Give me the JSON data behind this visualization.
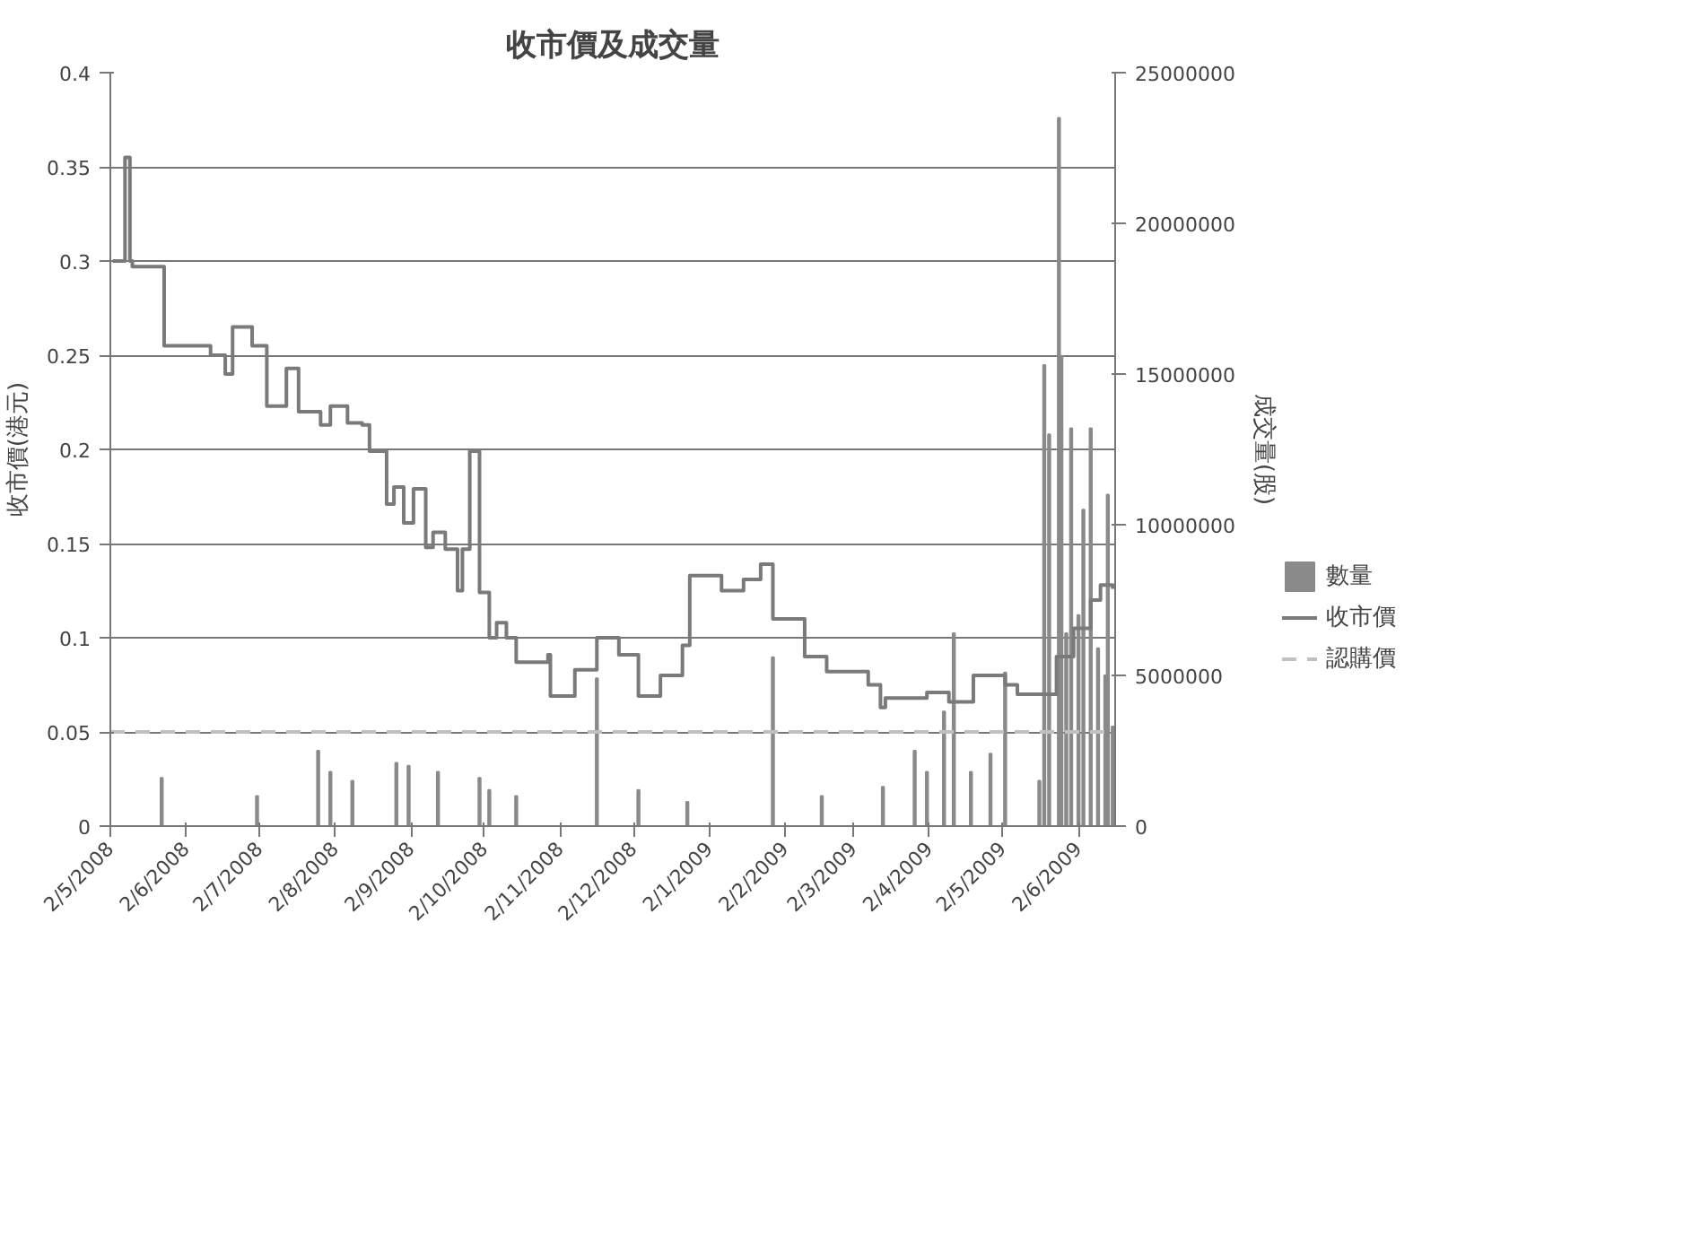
{
  "chart_data": {
    "type": "step",
    "title": "收市價及成交量",
    "ylabel": "收市價(港元)",
    "y2label": "成交量(股)",
    "xlim": [
      "2008-05-02",
      "2009-06-17"
    ],
    "xticks": [
      {
        "value": "2008-05-02",
        "label": "2/5/2008"
      },
      {
        "value": "2008-06-02",
        "label": "2/6/2008"
      },
      {
        "value": "2008-07-02",
        "label": "2/7/2008"
      },
      {
        "value": "2008-08-02",
        "label": "2/8/2008"
      },
      {
        "value": "2008-09-02",
        "label": "2/9/2008"
      },
      {
        "value": "2008-10-02",
        "label": "2/10/2008"
      },
      {
        "value": "2008-11-02",
        "label": "2/11/2008"
      },
      {
        "value": "2008-12-02",
        "label": "2/12/2008"
      },
      {
        "value": "2009-01-02",
        "label": "2/1/2009"
      },
      {
        "value": "2009-02-02",
        "label": "2/2/2009"
      },
      {
        "value": "2009-03-02",
        "label": "2/3/2009"
      },
      {
        "value": "2009-04-02",
        "label": "2/4/2009"
      },
      {
        "value": "2009-05-02",
        "label": "2/5/2009"
      },
      {
        "value": "2009-06-02",
        "label": "2/6/2009"
      }
    ],
    "ylim": [
      0,
      0.4
    ],
    "yticks": [
      0,
      0.05,
      0.1,
      0.15,
      0.2,
      0.25,
      0.3,
      0.35,
      0.4
    ],
    "y2lim": [
      0,
      25000000
    ],
    "y2ticks": [
      0,
      5000000,
      10000000,
      15000000,
      20000000,
      25000000
    ],
    "grid": "y",
    "legend": "right",
    "series": [
      {
        "name": "數量",
        "type": "bar",
        "axis": "y2",
        "color": "#8a8a8a",
        "x": [
          "2008-05-23",
          "2008-07-01",
          "2008-07-26",
          "2008-07-31",
          "2008-08-09",
          "2008-08-27",
          "2008-09-01",
          "2008-09-13",
          "2008-09-30",
          "2008-10-04",
          "2008-10-15",
          "2008-11-17",
          "2008-12-04",
          "2008-12-24",
          "2009-01-28",
          "2009-02-17",
          "2009-03-14",
          "2009-03-27",
          "2009-04-01",
          "2009-04-08",
          "2009-04-12",
          "2009-04-19",
          "2009-04-27",
          "2009-05-03",
          "2009-05-17",
          "2009-05-19",
          "2009-05-21",
          "2009-05-25",
          "2009-05-26",
          "2009-05-28",
          "2009-05-30",
          "2009-06-02",
          "2009-06-04",
          "2009-06-07",
          "2009-06-10",
          "2009-06-13",
          "2009-06-14",
          "2009-06-16"
        ],
        "values": [
          1600000,
          1000000,
          2500000,
          1800000,
          1500000,
          2100000,
          2000000,
          1800000,
          1600000,
          1200000,
          1000000,
          4900000,
          1200000,
          800000,
          5600000,
          1000000,
          1300000,
          2500000,
          1800000,
          3800000,
          6400000,
          1800000,
          2400000,
          5100000,
          1500000,
          15300000,
          13000000,
          23500000,
          15600000,
          6400000,
          13200000,
          7000000,
          10500000,
          13200000,
          5900000,
          5000000,
          11000000,
          3300000
        ]
      },
      {
        "name": "收市價",
        "color": "#7a7a7a",
        "line_style": "solid",
        "x": [
          "2008-05-03",
          "2008-05-07",
          "2008-05-08",
          "2008-05-10",
          "2008-05-11",
          "2008-05-23",
          "2008-05-24",
          "2008-06-12",
          "2008-06-18",
          "2008-06-21",
          "2008-06-29",
          "2008-07-05",
          "2008-07-13",
          "2008-07-18",
          "2008-07-27",
          "2008-07-31",
          "2008-08-07",
          "2008-08-13",
          "2008-08-16",
          "2008-08-23",
          "2008-08-26",
          "2008-08-30",
          "2008-09-03",
          "2008-09-08",
          "2008-09-11",
          "2008-09-16",
          "2008-09-20",
          "2008-09-21",
          "2008-09-23",
          "2008-09-26",
          "2008-09-30",
          "2008-10-04",
          "2008-10-07",
          "2008-10-11",
          "2008-10-15",
          "2008-10-28",
          "2008-10-29",
          "2008-11-03",
          "2008-11-08",
          "2008-11-17",
          "2008-11-26",
          "2008-12-04",
          "2008-12-13",
          "2008-12-22",
          "2008-12-25",
          "2009-01-07",
          "2009-01-16",
          "2009-01-23",
          "2009-01-28",
          "2009-02-10",
          "2009-02-19",
          "2009-03-08",
          "2009-03-13",
          "2009-03-15",
          "2009-04-01",
          "2009-04-10",
          "2009-04-20",
          "2009-05-03",
          "2009-05-08",
          "2009-05-17",
          "2009-05-24",
          "2009-05-31",
          "2009-06-07",
          "2009-06-11",
          "2009-06-16"
        ],
        "values": [
          0.3,
          0.3,
          0.355,
          0.3,
          0.297,
          0.297,
          0.255,
          0.25,
          0.24,
          0.265,
          0.255,
          0.223,
          0.243,
          0.22,
          0.213,
          0.223,
          0.214,
          0.213,
          0.199,
          0.171,
          0.18,
          0.161,
          0.179,
          0.148,
          0.156,
          0.147,
          0.147,
          0.125,
          0.147,
          0.199,
          0.124,
          0.1,
          0.108,
          0.1,
          0.087,
          0.091,
          0.069,
          0.069,
          0.083,
          0.1,
          0.091,
          0.069,
          0.08,
          0.096,
          0.133,
          0.125,
          0.131,
          0.139,
          0.11,
          0.09,
          0.082,
          0.075,
          0.063,
          0.068,
          0.071,
          0.066,
          0.08,
          0.075,
          0.07,
          0.07,
          0.09,
          0.105,
          0.12,
          0.128,
          0.126
        ]
      },
      {
        "name": "認購價",
        "type": "line",
        "color": "#c0c0c0",
        "line_style": "dashed",
        "x": [
          "2008-05-02",
          "2009-06-17"
        ],
        "values": [
          0.05,
          0.05
        ]
      }
    ]
  }
}
